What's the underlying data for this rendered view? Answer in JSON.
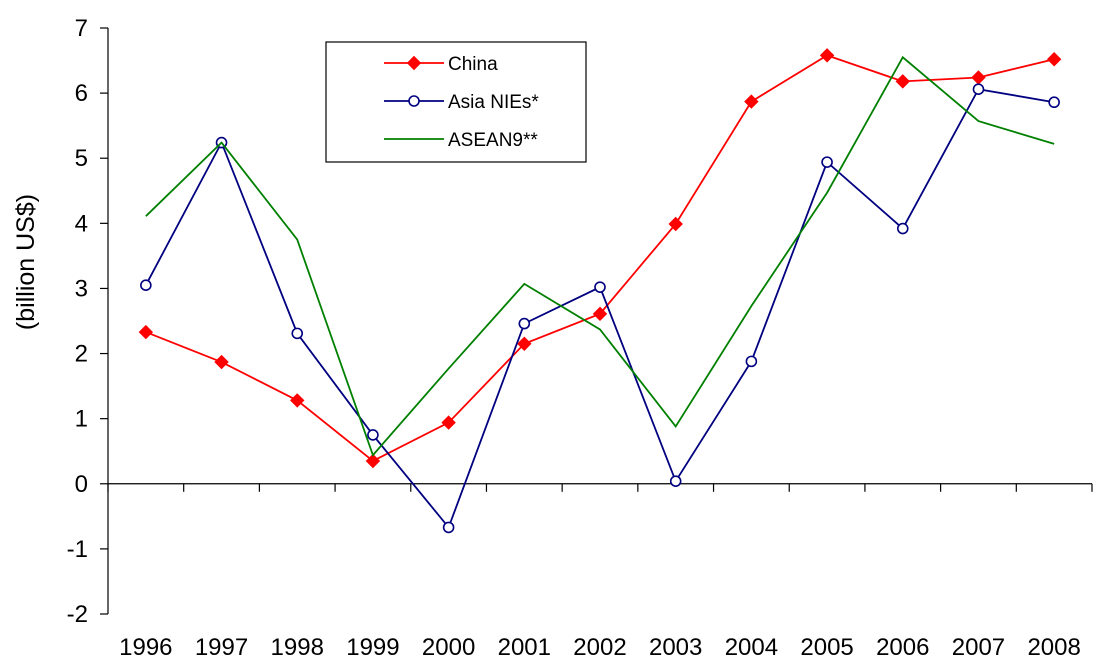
{
  "chart_data": {
    "type": "line",
    "title": "",
    "xlabel": "",
    "ylabel": "(billion US$)",
    "x": [
      "1996",
      "1997",
      "1998",
      "1999",
      "2000",
      "2001",
      "2002",
      "2003",
      "2004",
      "2005",
      "2006",
      "2007",
      "2008"
    ],
    "yticks": [
      "-2",
      "-1",
      "0",
      "1",
      "2",
      "3",
      "4",
      "5",
      "6",
      "7"
    ],
    "ylim": [
      -2,
      7
    ],
    "grid": false,
    "legend_position": "top-center",
    "series": [
      {
        "name": "China",
        "color": "#ff0000",
        "marker": "filled-diamond",
        "values": [
          2.33,
          1.87,
          1.28,
          0.35,
          0.94,
          2.15,
          2.61,
          3.99,
          5.87,
          6.58,
          6.18,
          6.24,
          6.52
        ]
      },
      {
        "name": "Asia NIEs*",
        "color": "#000080",
        "marker": "open-circle",
        "values": [
          3.05,
          5.24,
          2.31,
          0.75,
          -0.67,
          2.46,
          3.02,
          0.04,
          1.88,
          4.94,
          3.92,
          6.06,
          5.86
        ]
      },
      {
        "name": "ASEAN9**",
        "color": "#008000",
        "marker": "none",
        "values": [
          4.11,
          5.24,
          3.75,
          0.44,
          1.77,
          3.07,
          2.37,
          0.88,
          2.73,
          4.47,
          6.55,
          5.57,
          5.22
        ]
      }
    ]
  }
}
